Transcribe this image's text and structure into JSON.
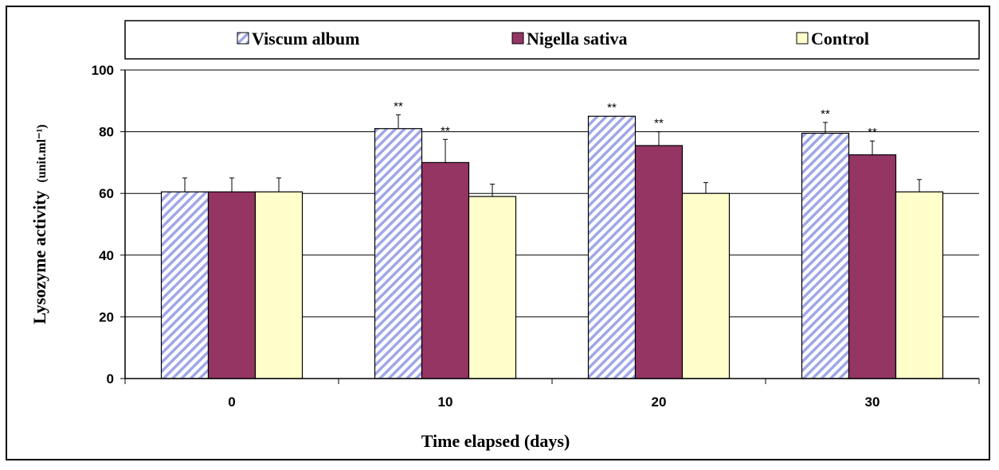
{
  "chart_data": {
    "type": "bar",
    "categories": [
      "0",
      "10",
      "20",
      "30"
    ],
    "series": [
      {
        "name": "Viscum album",
        "values": [
          60.5,
          81.0,
          85.0,
          79.5
        ],
        "errors": [
          4.5,
          4.5,
          0,
          3.5
        ],
        "significance": [
          "",
          "**",
          "**",
          "**"
        ],
        "color": "#9fa6e8",
        "pattern": "diagonal-hatch"
      },
      {
        "name": "Nigella sativa",
        "values": [
          60.5,
          70.0,
          75.5,
          72.5
        ],
        "errors": [
          4.5,
          7.5,
          4.5,
          4.5
        ],
        "significance": [
          "",
          "**",
          "**",
          "**"
        ],
        "color": "#943563",
        "pattern": "solid"
      },
      {
        "name": "Control",
        "values": [
          60.5,
          59.0,
          60.0,
          60.5
        ],
        "errors": [
          4.5,
          4.0,
          3.5,
          4.0
        ],
        "significance": [
          "",
          "",
          "",
          ""
        ],
        "color": "#ffffcc",
        "pattern": "solid"
      }
    ],
    "xlabel": "Time elapsed (days)",
    "ylabel": "Lysozyme activity",
    "ylabel_unit": "(unit.ml⁻¹)",
    "ylim": [
      0,
      100
    ],
    "yticks": [
      0,
      20,
      40,
      60,
      80,
      100
    ],
    "grid": true,
    "legend": "top"
  }
}
